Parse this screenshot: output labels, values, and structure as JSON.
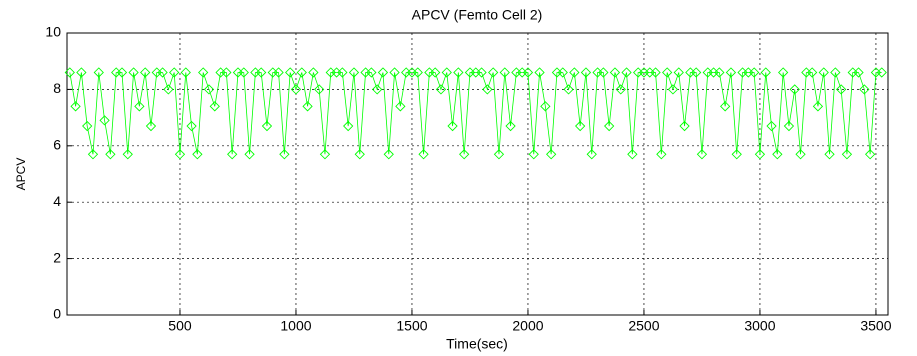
{
  "chart_data": {
    "type": "line",
    "title": "APCV (Femto Cell 2)",
    "xlabel": "Time(sec)",
    "ylabel": "APCV",
    "color": "#00ff00",
    "marker": "diamond",
    "grid": true,
    "xlim": [
      13,
      3552
    ],
    "ylim": [
      0,
      10
    ],
    "xticks": [
      500,
      1000,
      1500,
      2000,
      2500,
      3000,
      3500
    ],
    "yticks": [
      0,
      2,
      4,
      6,
      8,
      10
    ],
    "x": [
      25,
      50,
      75,
      100,
      125,
      150,
      175,
      200,
      225,
      250,
      275,
      300,
      325,
      350,
      375,
      400,
      425,
      450,
      475,
      500,
      525,
      550,
      575,
      600,
      625,
      650,
      675,
      700,
      725,
      750,
      775,
      800,
      825,
      850,
      875,
      900,
      925,
      950,
      975,
      1000,
      1025,
      1050,
      1075,
      1100,
      1125,
      1150,
      1175,
      1200,
      1225,
      1250,
      1275,
      1300,
      1325,
      1350,
      1375,
      1400,
      1425,
      1450,
      1475,
      1500,
      1525,
      1550,
      1575,
      1600,
      1625,
      1650,
      1675,
      1700,
      1725,
      1750,
      1775,
      1800,
      1825,
      1850,
      1875,
      1900,
      1925,
      1950,
      1975,
      2000,
      2025,
      2050,
      2075,
      2100,
      2125,
      2150,
      2175,
      2200,
      2225,
      2250,
      2275,
      2300,
      2325,
      2350,
      2375,
      2400,
      2425,
      2450,
      2475,
      2500,
      2525,
      2550,
      2575,
      2600,
      2625,
      2650,
      2675,
      2700,
      2725,
      2750,
      2775,
      2800,
      2825,
      2850,
      2875,
      2900,
      2925,
      2950,
      2975,
      3000,
      3025,
      3050,
      3075,
      3100,
      3125,
      3150,
      3175,
      3200,
      3225,
      3250,
      3275,
      3300,
      3325,
      3350,
      3375,
      3400,
      3425,
      3450,
      3475,
      3500,
      3525
    ],
    "values": [
      8.6,
      7.4,
      8.6,
      6.7,
      5.7,
      8.6,
      6.9,
      5.7,
      8.6,
      8.6,
      5.7,
      8.6,
      7.4,
      8.6,
      6.7,
      8.6,
      8.6,
      8.0,
      8.6,
      5.7,
      8.6,
      6.7,
      5.7,
      8.6,
      8.0,
      7.4,
      8.6,
      8.6,
      5.7,
      8.6,
      8.6,
      5.7,
      8.6,
      8.6,
      6.7,
      8.6,
      8.6,
      5.7,
      8.6,
      8.0,
      8.6,
      7.4,
      8.6,
      8.0,
      5.7,
      8.6,
      8.6,
      8.6,
      6.7,
      8.6,
      5.7,
      8.6,
      8.6,
      8.0,
      8.6,
      5.7,
      8.6,
      7.4,
      8.6,
      8.6,
      8.6,
      5.7,
      8.6,
      8.6,
      8.0,
      8.6,
      6.7,
      8.6,
      5.7,
      8.6,
      8.6,
      8.6,
      8.0,
      8.6,
      5.7,
      8.6,
      6.7,
      8.6,
      8.6,
      8.6,
      5.7,
      8.6,
      7.4,
      5.7,
      8.6,
      8.6,
      8.0,
      8.6,
      6.7,
      8.6,
      5.7,
      8.6,
      8.6,
      6.7,
      8.6,
      8.0,
      8.6,
      5.7,
      8.6,
      8.6,
      8.6,
      8.6,
      5.7,
      8.6,
      8.0,
      8.6,
      6.7,
      8.6,
      8.6,
      5.7,
      8.6,
      8.6,
      8.6,
      7.4,
      8.6,
      5.7,
      8.6,
      8.6,
      8.6,
      5.7,
      8.6,
      6.7,
      5.7,
      8.6,
      6.7,
      8.0,
      5.7,
      8.6,
      8.6,
      7.4,
      8.6,
      5.7,
      8.6,
      8.0,
      5.7,
      8.6,
      8.6,
      8.0,
      5.7,
      8.6,
      8.6
    ]
  }
}
